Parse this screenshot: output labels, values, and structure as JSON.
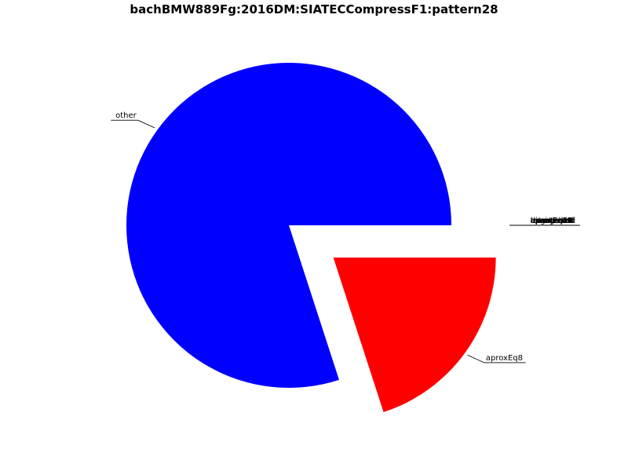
{
  "chart_data": {
    "type": "pie",
    "title": "bachBMW889Fg:2016DM:SIATECCompressF1:pattern28",
    "slices": [
      {
        "label": "other",
        "value": 0.8,
        "color": "#0000ff",
        "exploded": false
      },
      {
        "label": "aproxEq8",
        "value": 0.2,
        "color": "#ff0000",
        "exploded": true
      },
      {
        "label": "aproxEq10",
        "value": 0.0,
        "color": "#ff0000",
        "exploded": true
      },
      {
        "label": "aproxEq11",
        "value": 0.0,
        "color": "#ff0000",
        "exploded": true
      },
      {
        "label": "aproxEq12",
        "value": 0.0,
        "color": "#ff0000",
        "exploded": true
      },
      {
        "label": "aproxEq13",
        "value": 0.0,
        "color": "#ff0000",
        "exploded": true
      },
      {
        "label": "aproxEq14",
        "value": 0.0,
        "color": "#ff0000",
        "exploded": true
      },
      {
        "label": "aproxEq15",
        "value": 0.0,
        "color": "#ff0000",
        "exploded": true
      },
      {
        "label": "aproxEq16",
        "value": 0.0,
        "color": "#ff0000",
        "exploded": true
      },
      {
        "label": "aproxEq17",
        "value": 0.0,
        "color": "#ff0000",
        "exploded": true
      },
      {
        "label": "aproxEq18",
        "value": 0.0,
        "color": "#ff0000",
        "exploded": true
      },
      {
        "label": "exact",
        "value": 0.0,
        "color": "#ff0000",
        "exploded": true
      },
      {
        "label": "transposed",
        "value": 0.0,
        "color": "#ff0000",
        "exploded": true
      },
      {
        "label": "inverted",
        "value": 0.0,
        "color": "#ff0000",
        "exploded": true
      },
      {
        "label": "retrograde",
        "value": 0.0,
        "color": "#ff0000",
        "exploded": true
      },
      {
        "label": "augmented",
        "value": 0.0,
        "color": "#ff0000",
        "exploded": true
      },
      {
        "label": "diminished",
        "value": 0.0,
        "color": "#ff0000",
        "exploded": true
      }
    ]
  }
}
